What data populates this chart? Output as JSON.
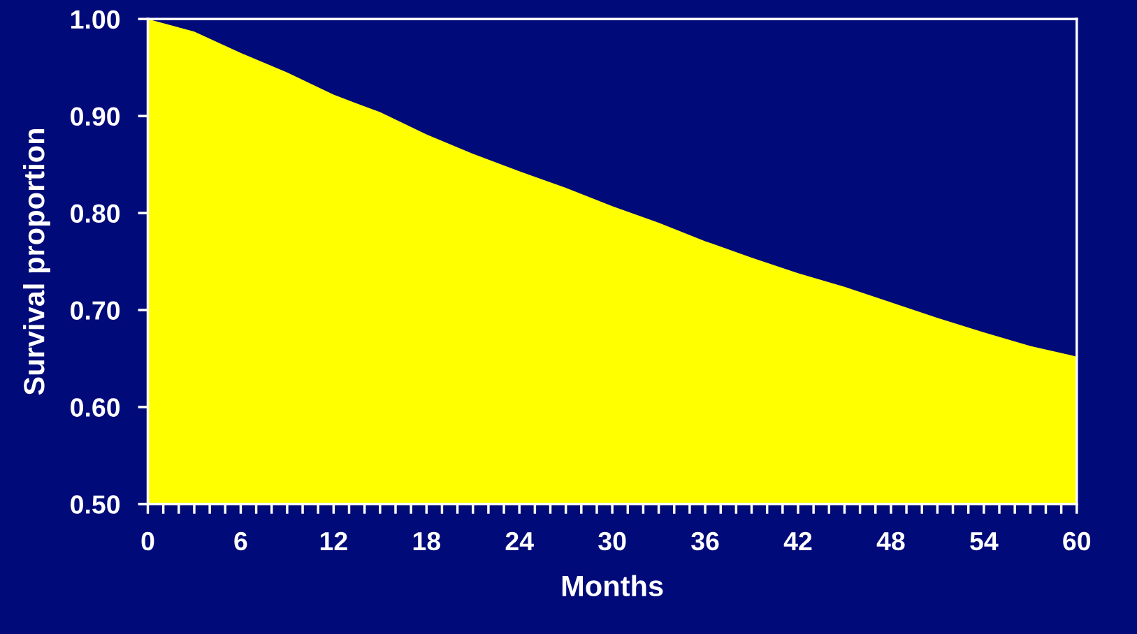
{
  "chart_data": {
    "type": "area",
    "xlabel": "Months",
    "ylabel": "Survival proportion",
    "x": [
      0,
      3,
      6,
      9,
      12,
      15,
      18,
      21,
      24,
      27,
      30,
      33,
      36,
      39,
      42,
      45,
      48,
      51,
      54,
      57,
      60
    ],
    "series": [
      {
        "color": "#ffff00",
        "values": [
          1.0,
          0.987,
          0.965,
          0.945,
          0.922,
          0.904,
          0.881,
          0.861,
          0.843,
          0.826,
          0.807,
          0.79,
          0.771,
          0.754,
          0.738,
          0.724,
          0.708,
          0.692,
          0.677,
          0.663,
          0.652
        ]
      }
    ],
    "xlim": [
      0,
      60
    ],
    "xticks": [
      0,
      6,
      12,
      18,
      24,
      30,
      36,
      42,
      48,
      54,
      60
    ],
    "ylim": [
      0.5,
      1.0
    ],
    "yticks": [
      {
        "value": 0.5,
        "label": "0.50"
      },
      {
        "value": 0.6,
        "label": "0.60"
      },
      {
        "value": 0.7,
        "label": "0.70"
      },
      {
        "value": 0.8,
        "label": "0.80"
      },
      {
        "value": 0.9,
        "label": "0.90"
      },
      {
        "value": 1.0,
        "label": "1.00"
      }
    ],
    "grid": false,
    "legend": false
  }
}
